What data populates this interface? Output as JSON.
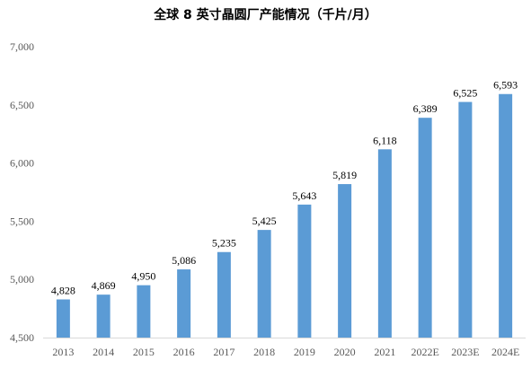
{
  "chart_data": {
    "type": "bar",
    "title": "全球 8 英寸晶圆厂产能情况（千片/月）",
    "categories": [
      "2013",
      "2014",
      "2015",
      "2016",
      "2017",
      "2018",
      "2019",
      "2020",
      "2021",
      "2022E",
      "2023E",
      "2024E"
    ],
    "series": [
      {
        "values": [
          4828,
          4869,
          4950,
          5086,
          5235,
          5425,
          5643,
          5819,
          6118,
          6389,
          6525,
          6593
        ]
      }
    ],
    "data_labels": [
      "4,828",
      "4,869",
      "4,950",
      "5,086",
      "5,235",
      "5,425",
      "5,643",
      "5,819",
      "6,118",
      "6,389",
      "6,525",
      "6,593"
    ],
    "yticks": [
      4500,
      5000,
      5500,
      6000,
      6500,
      7000
    ],
    "ytick_labels": [
      "4,500",
      "5,000",
      "5,500",
      "6,000",
      "6,500",
      "7,000"
    ],
    "ylim": [
      4500,
      7000
    ],
    "xlabel": "",
    "ylabel": "",
    "grid": false,
    "legend": "none",
    "bar_color": "#5b9bd5",
    "axis_color": "#d9d9d9",
    "tick_label_color": "#595959",
    "data_label_color": "#000000"
  }
}
